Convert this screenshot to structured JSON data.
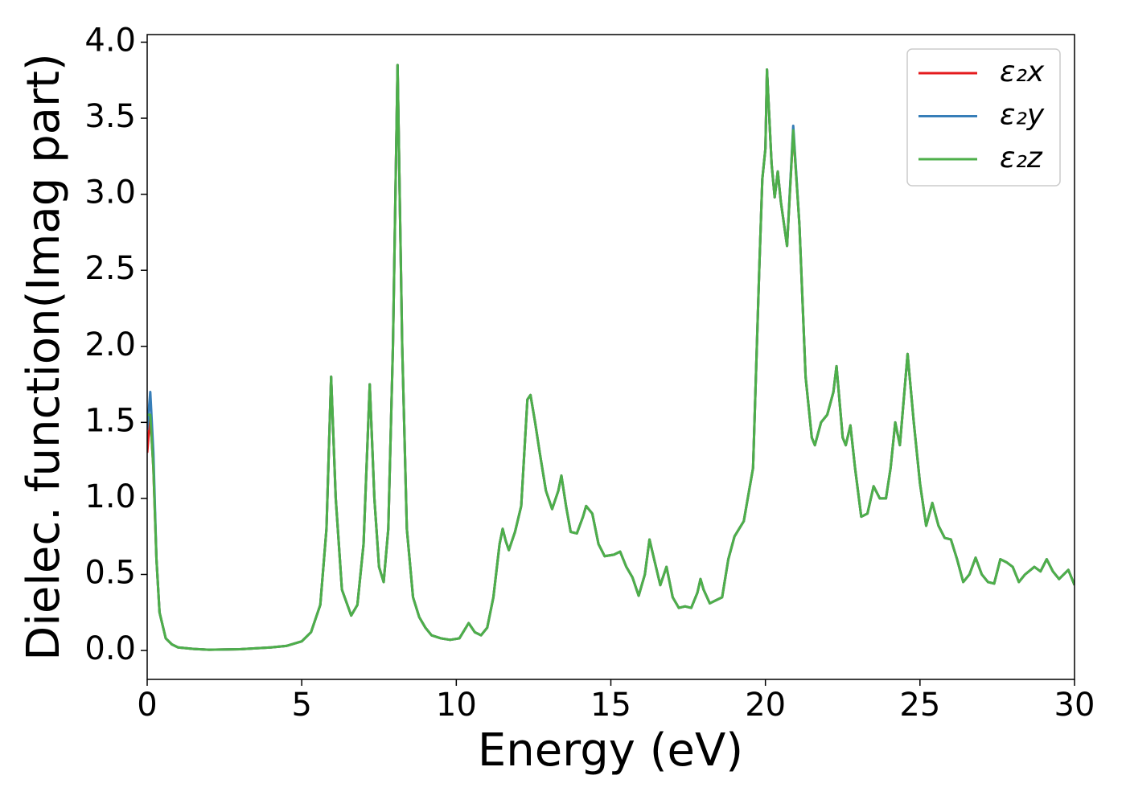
{
  "chart_data": {
    "type": "line",
    "xlabel": "Energy (eV)",
    "ylabel": "Dielec. function(Imag part)",
    "xlim": [
      0,
      30
    ],
    "ylim": [
      -0.19,
      4.05
    ],
    "xticks": [
      0,
      5,
      10,
      15,
      20,
      25,
      30
    ],
    "yticks": [
      {
        "value": 0,
        "label": "0.0"
      },
      0.5,
      {
        "value": 1,
        "label": "1.0"
      },
      1.5,
      {
        "value": 2,
        "label": "2.0"
      },
      2.5,
      {
        "value": 3,
        "label": "3.0"
      },
      3.5,
      {
        "value": 4,
        "label": "4.0"
      }
    ],
    "grid": false,
    "legend": "upper right",
    "x": [
      0,
      0.1,
      0.2,
      0.3,
      0.4,
      0.6,
      0.8,
      1,
      1.5,
      2,
      3,
      4,
      4.5,
      5,
      5.3,
      5.6,
      5.8,
      5.95,
      6.1,
      6.3,
      6.6,
      6.8,
      7,
      7.2,
      7.35,
      7.5,
      7.65,
      7.8,
      7.95,
      8.1,
      8.25,
      8.4,
      8.6,
      8.8,
      9,
      9.2,
      9.5,
      9.8,
      10.1,
      10.4,
      10.6,
      10.8,
      11,
      11.2,
      11.4,
      11.5,
      11.6,
      11.7,
      11.9,
      12.1,
      12.3,
      12.4,
      12.55,
      12.7,
      12.9,
      13.1,
      13.3,
      13.4,
      13.55,
      13.7,
      13.9,
      14.1,
      14.2,
      14.4,
      14.6,
      14.8,
      15.1,
      15.3,
      15.5,
      15.7,
      15.9,
      16.1,
      16.25,
      16.4,
      16.6,
      16.8,
      17,
      17.2,
      17.4,
      17.6,
      17.8,
      17.9,
      18,
      18.2,
      18.4,
      18.6,
      18.8,
      19,
      19.3,
      19.6,
      19.8,
      19.9,
      20,
      20.05,
      20.2,
      20.3,
      20.4,
      20.5,
      20.7,
      20.9,
      21.1,
      21.3,
      21.5,
      21.6,
      21.8,
      22,
      22.2,
      22.3,
      22.5,
      22.6,
      22.75,
      22.9,
      23.1,
      23.3,
      23.5,
      23.7,
      23.9,
      24.05,
      24.2,
      24.35,
      24.6,
      24.8,
      25,
      25.2,
      25.4,
      25.6,
      25.8,
      26,
      26.2,
      26.4,
      26.6,
      26.8,
      27,
      27.2,
      27.4,
      27.6,
      27.8,
      28,
      28.2,
      28.4,
      28.7,
      28.9,
      29.1,
      29.3,
      29.5,
      29.8,
      30
    ],
    "series": [
      {
        "name": "ε₂x",
        "color": "#e41a1c",
        "values": [
          1.3,
          1.55,
          1.2,
          0.6,
          0.25,
          0.08,
          0.04,
          0.02,
          0.01,
          0.005,
          0.008,
          0.02,
          0.03,
          0.06,
          0.12,
          0.3,
          0.8,
          1.8,
          1.0,
          0.4,
          0.23,
          0.3,
          0.7,
          1.75,
          1.0,
          0.55,
          0.45,
          0.8,
          2.0,
          3.85,
          2.0,
          0.8,
          0.35,
          0.22,
          0.15,
          0.1,
          0.08,
          0.07,
          0.08,
          0.18,
          0.12,
          0.1,
          0.15,
          0.35,
          0.7,
          0.8,
          0.72,
          0.66,
          0.78,
          0.95,
          1.65,
          1.68,
          1.5,
          1.3,
          1.05,
          0.93,
          1.05,
          1.15,
          0.95,
          0.78,
          0.77,
          0.88,
          0.95,
          0.9,
          0.7,
          0.62,
          0.63,
          0.65,
          0.55,
          0.48,
          0.36,
          0.5,
          0.73,
          0.6,
          0.43,
          0.55,
          0.35,
          0.28,
          0.29,
          0.28,
          0.38,
          0.47,
          0.4,
          0.31,
          0.33,
          0.35,
          0.6,
          0.75,
          0.85,
          1.2,
          2.5,
          3.1,
          3.3,
          3.82,
          3.2,
          2.98,
          3.15,
          2.95,
          2.66,
          3.42,
          2.8,
          1.8,
          1.4,
          1.35,
          1.5,
          1.55,
          1.7,
          1.87,
          1.4,
          1.35,
          1.48,
          1.2,
          0.88,
          0.9,
          1.08,
          1.0,
          1.0,
          1.2,
          1.5,
          1.35,
          1.95,
          1.5,
          1.1,
          0.82,
          0.97,
          0.82,
          0.74,
          0.73,
          0.6,
          0.45,
          0.5,
          0.61,
          0.5,
          0.45,
          0.44,
          0.6,
          0.58,
          0.55,
          0.45,
          0.5,
          0.55,
          0.52,
          0.6,
          0.52,
          0.47,
          0.53,
          0.43
        ]
      },
      {
        "name": "ε₂y",
        "color": "#377eb8",
        "values": [
          1.45,
          1.7,
          1.3,
          0.6,
          0.25,
          0.08,
          0.04,
          0.02,
          0.01,
          0.005,
          0.008,
          0.02,
          0.03,
          0.06,
          0.12,
          0.3,
          0.8,
          1.8,
          1.0,
          0.4,
          0.23,
          0.3,
          0.7,
          1.75,
          1.0,
          0.55,
          0.45,
          0.8,
          2.0,
          3.85,
          2.0,
          0.8,
          0.35,
          0.22,
          0.15,
          0.1,
          0.08,
          0.07,
          0.08,
          0.18,
          0.12,
          0.1,
          0.15,
          0.35,
          0.7,
          0.8,
          0.72,
          0.66,
          0.78,
          0.95,
          1.65,
          1.68,
          1.5,
          1.3,
          1.05,
          0.93,
          1.05,
          1.15,
          0.95,
          0.78,
          0.77,
          0.88,
          0.95,
          0.9,
          0.7,
          0.62,
          0.63,
          0.65,
          0.55,
          0.48,
          0.36,
          0.5,
          0.73,
          0.6,
          0.43,
          0.55,
          0.35,
          0.28,
          0.29,
          0.28,
          0.38,
          0.47,
          0.4,
          0.31,
          0.33,
          0.35,
          0.6,
          0.75,
          0.85,
          1.2,
          2.5,
          3.1,
          3.3,
          3.82,
          3.2,
          2.98,
          3.15,
          2.95,
          2.66,
          3.45,
          2.8,
          1.8,
          1.4,
          1.35,
          1.5,
          1.55,
          1.7,
          1.87,
          1.4,
          1.35,
          1.48,
          1.2,
          0.88,
          0.9,
          1.08,
          1.0,
          1.0,
          1.2,
          1.5,
          1.35,
          1.95,
          1.5,
          1.1,
          0.82,
          0.97,
          0.82,
          0.74,
          0.73,
          0.6,
          0.45,
          0.5,
          0.61,
          0.5,
          0.45,
          0.44,
          0.6,
          0.58,
          0.55,
          0.45,
          0.5,
          0.55,
          0.52,
          0.6,
          0.52,
          0.47,
          0.53,
          0.43
        ]
      },
      {
        "name": "ε₂z",
        "color": "#4daf4a",
        "values": [
          1.55,
          1.55,
          1.2,
          0.6,
          0.25,
          0.08,
          0.04,
          0.02,
          0.01,
          0.005,
          0.008,
          0.02,
          0.03,
          0.06,
          0.12,
          0.3,
          0.8,
          1.8,
          1.0,
          0.4,
          0.23,
          0.3,
          0.7,
          1.75,
          1.0,
          0.55,
          0.45,
          0.8,
          2.0,
          3.85,
          2.0,
          0.8,
          0.35,
          0.22,
          0.15,
          0.1,
          0.08,
          0.07,
          0.08,
          0.18,
          0.12,
          0.1,
          0.15,
          0.35,
          0.7,
          0.8,
          0.72,
          0.66,
          0.78,
          0.95,
          1.65,
          1.68,
          1.5,
          1.3,
          1.05,
          0.93,
          1.05,
          1.15,
          0.95,
          0.78,
          0.77,
          0.88,
          0.95,
          0.9,
          0.7,
          0.62,
          0.63,
          0.65,
          0.55,
          0.48,
          0.36,
          0.5,
          0.73,
          0.6,
          0.43,
          0.55,
          0.35,
          0.28,
          0.29,
          0.28,
          0.38,
          0.47,
          0.4,
          0.31,
          0.33,
          0.35,
          0.6,
          0.75,
          0.85,
          1.2,
          2.5,
          3.1,
          3.3,
          3.82,
          3.2,
          2.98,
          3.15,
          2.95,
          2.66,
          3.42,
          2.8,
          1.8,
          1.4,
          1.35,
          1.5,
          1.55,
          1.7,
          1.87,
          1.4,
          1.35,
          1.48,
          1.2,
          0.88,
          0.9,
          1.08,
          1.0,
          1.0,
          1.2,
          1.5,
          1.35,
          1.95,
          1.5,
          1.1,
          0.82,
          0.97,
          0.82,
          0.74,
          0.73,
          0.6,
          0.45,
          0.5,
          0.61,
          0.5,
          0.45,
          0.44,
          0.6,
          0.58,
          0.55,
          0.45,
          0.5,
          0.55,
          0.52,
          0.6,
          0.52,
          0.47,
          0.53,
          0.43
        ]
      }
    ]
  }
}
